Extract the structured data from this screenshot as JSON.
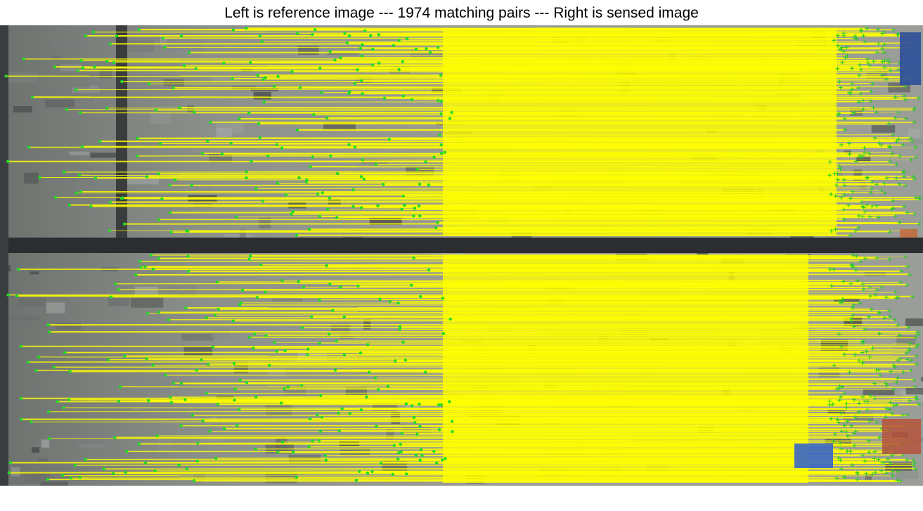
{
  "title": "Left is reference image --- 1974 matching pairs --- Right is sensed image",
  "figure": {
    "subject": "satellite-image-feature-matching",
    "left_image": "reference image",
    "right_image": "sensed image",
    "match_count": 1974,
    "colors": {
      "match_line": "#ffff00",
      "reference_point": "#22dd22",
      "sensed_marker": "#22cc22",
      "road": "#2a2c2e",
      "ground": "#8a8e88"
    }
  }
}
